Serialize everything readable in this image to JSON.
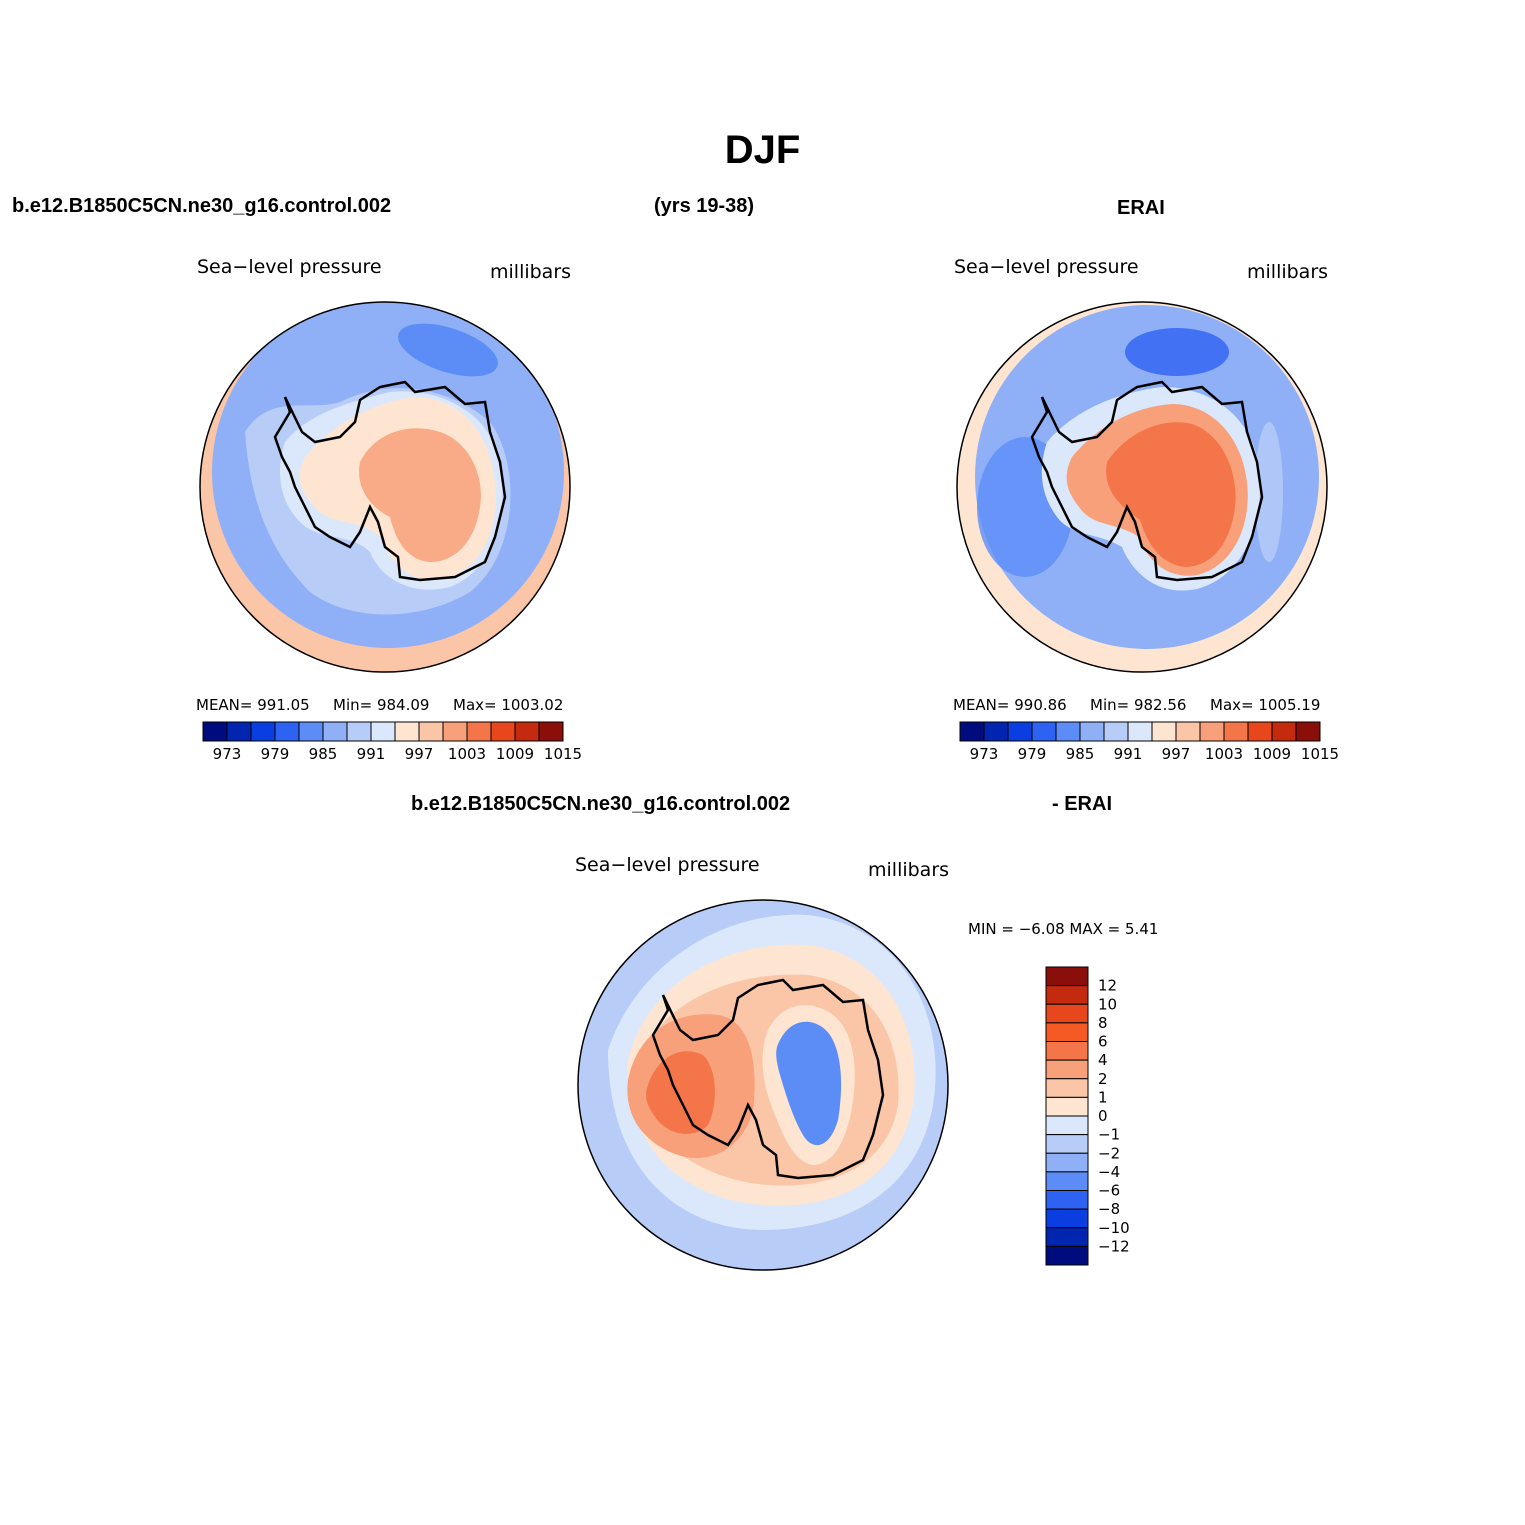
{
  "title": "DJF",
  "top_panels": {
    "left_header": "b.e12.B1850C5CN.ne30_g16.control.002",
    "center_header": "(yrs 19-38)",
    "right_header": "ERAI"
  },
  "panel_model": {
    "var_title": "Sea−level pressure",
    "units": "millibars",
    "stats": {
      "mean": "MEAN=  991.05",
      "min": "Min=  984.09",
      "max": "Max=  1003.02"
    }
  },
  "panel_obs": {
    "var_title": "Sea−level pressure",
    "units": "millibars",
    "stats": {
      "mean": "MEAN=  990.86",
      "min": "Min=  982.56",
      "max": "Max=  1005.19"
    }
  },
  "diff_panel": {
    "header_left": "b.e12.B1850C5CN.ne30_g16.control.002",
    "header_right": "- ERAI",
    "var_title": "Sea−level pressure",
    "units": "millibars",
    "minmax": "MIN =   −6.08  MAX =     5.41"
  },
  "colorbar_abs": {
    "colors": [
      "#000c7d",
      "#0026b0",
      "#0a3ee0",
      "#2e62f2",
      "#5c8df7",
      "#8fb0f7",
      "#b7ccf7",
      "#dbe8fb",
      "#fde5d2",
      "#fbc6a7",
      "#f8a07a",
      "#f47549",
      "#e8461c",
      "#c42a0e",
      "#8a0f0b"
    ],
    "labels": [
      "973",
      "979",
      "985",
      "991",
      "997",
      "1003",
      "1009",
      "1015"
    ]
  },
  "colorbar_diff": {
    "colors": [
      "#8a0f0b",
      "#c42a0e",
      "#e8461c",
      "#f55a25",
      "#f47549",
      "#f8a07a",
      "#fbc6a7",
      "#fde5d2",
      "#dbe8fb",
      "#b7ccf7",
      "#8fb0f7",
      "#5c8df7",
      "#2e62f2",
      "#0a3ee0",
      "#0026b0",
      "#000c7d"
    ],
    "labels": [
      "12",
      "10",
      "8",
      "6",
      "4",
      "2",
      "1",
      "0",
      "−1",
      "−2",
      "−4",
      "−6",
      "−8",
      "−10",
      "−12"
    ]
  },
  "map_legend": {
    "model": [
      "#fbc6a7",
      "#8fb0f7",
      "#5c8df7",
      "#b7ccf7",
      "#dbe8fb",
      "#fde5d2",
      "#f8a07a"
    ],
    "obs": [
      "#fde5d2",
      "#8fb0f7",
      "#2e62f2",
      "#5c8df7",
      "#b7ccf7",
      "#dbe8fb",
      "#f8a07a",
      "#f47549"
    ],
    "diff": [
      "#b7ccf7",
      "#dbe8fb",
      "#fde5d2",
      "#fbc6a7",
      "#f8a07a",
      "#f47549",
      "#5c8df7"
    ]
  }
}
